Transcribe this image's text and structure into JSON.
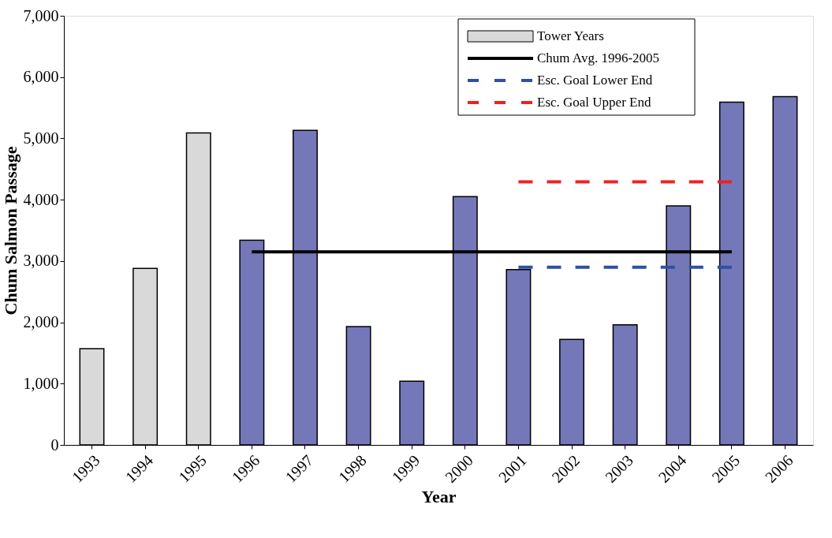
{
  "chart_data": {
    "type": "bar",
    "xlabel": "Year",
    "ylabel": "Chum Salmon Passage",
    "categories": [
      "1993",
      "1994",
      "1995",
      "1996",
      "1997",
      "1998",
      "1999",
      "2000",
      "2001",
      "2002",
      "2003",
      "2004",
      "2005",
      "2006"
    ],
    "series": [
      {
        "name": "Tower Years",
        "color": "#d9d9d9",
        "values": [
          1570,
          2880,
          5090,
          null,
          null,
          null,
          null,
          null,
          null,
          null,
          null,
          null,
          null,
          null
        ]
      },
      {
        "color": "#7478b8",
        "values": [
          null,
          null,
          null,
          3340,
          5130,
          1930,
          1040,
          4050,
          2860,
          1720,
          1960,
          3900,
          5590,
          5680
        ]
      },
      {
        "name": "Chum Avg. 1996-2005",
        "type": "line",
        "color": "#000000",
        "line_style": "solid",
        "values": [
          null,
          null,
          null,
          3150,
          3150,
          3150,
          3150,
          3150,
          3150,
          3150,
          3150,
          3150,
          3150,
          null
        ]
      },
      {
        "name": "Esc. Goal Lower End",
        "type": "line",
        "color": "#2e4fa3",
        "line_style": "dashed",
        "values": [
          null,
          null,
          null,
          null,
          null,
          null,
          null,
          null,
          2900,
          2900,
          2900,
          2900,
          2900,
          null
        ]
      },
      {
        "name": "Esc. Goal Upper End",
        "type": "line",
        "color": "#ee2222",
        "line_style": "dashed",
        "values": [
          null,
          null,
          null,
          null,
          null,
          null,
          null,
          null,
          4290,
          4290,
          4290,
          4290,
          4290,
          null
        ]
      }
    ],
    "ylim": [
      0,
      7000
    ],
    "yticks": [
      0,
      {
        "value": 1000,
        "label": "1,000"
      },
      {
        "value": 2000,
        "label": "2,000"
      },
      {
        "value": 3000,
        "label": "3,000"
      },
      {
        "value": 4000,
        "label": "4,000"
      },
      {
        "value": 5000,
        "label": "5,000"
      },
      {
        "value": 6000,
        "label": "6,000"
      },
      {
        "value": 7000,
        "label": "7,000"
      }
    ],
    "grid": false,
    "legend": "top right"
  }
}
